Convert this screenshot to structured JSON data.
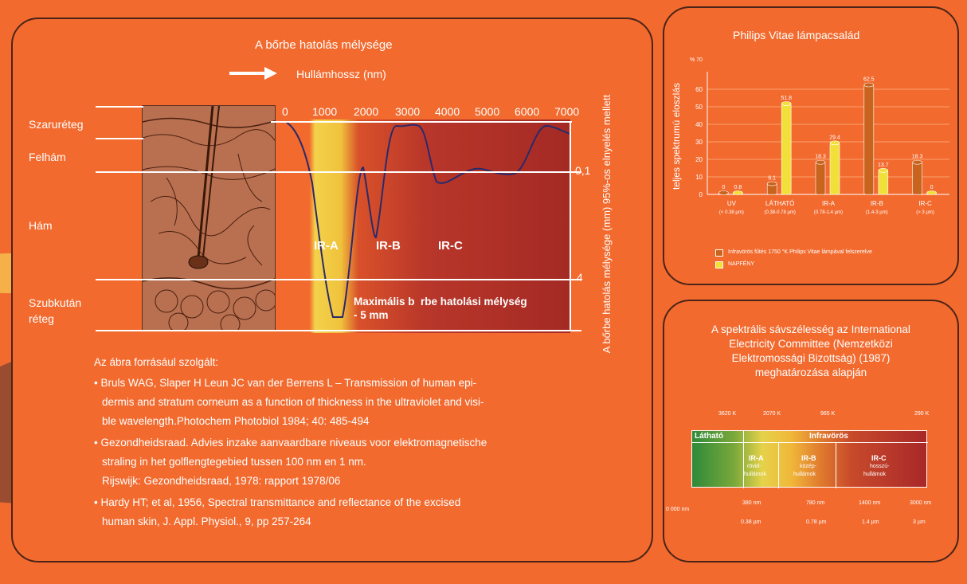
{
  "main_diagram": {
    "title": "A bőrbe hatolás mélysége",
    "wavelength_label": "Hullámhossz (nm)",
    "layers": [
      "Szaruréteg",
      "Felhám",
      "Hám",
      "Szubkután\nréteg"
    ],
    "x_ticks": [
      "0",
      "1000",
      "2000",
      "3000",
      "4000",
      "5000",
      "6000",
      "7000"
    ],
    "right_ticks": [
      "0,1",
      "4"
    ],
    "right_axis_label": "A bőrbe hatolás mélysége (mm) 95%-os elnyelés mellett",
    "band_labels": [
      "IR-A",
      "IR-B",
      "IR-C"
    ],
    "max_depth_line1": "Maximális b  rbe hatolási mélység",
    "max_depth_line2": "- 5 mm"
  },
  "sources": {
    "heading": "Az ábra forrásául szolgált:",
    "items": [
      [
        "• Bruls WAG, Slaper H Leun JC van der Berrens L – Transmission of human epi-",
        "dermis and stratum corneum as a function of thickness in the ultraviolet and visi-",
        "ble wavelength.Photochem Photobiol 1984; 40: 485-494"
      ],
      [
        "• Gezondheidsraad. Advies inzake aanvaardbare niveaus voor elektromagnetische",
        "straling in het golflengtegebied tussen 100 nm en 1 nm.",
        "Rijswijk: Gezondheidsraad, 1978: rapport 1978/06"
      ],
      [
        "• Hardy HT; et al, 1956, Spectral transmittance and reflectance of the excised",
        "human skin, J. Appl. Physiol., 9, pp 257-264"
      ]
    ]
  },
  "chart_data": {
    "type": "bar",
    "title": "Philips Vitae lámpacsalád",
    "ylabel": "teljes spektrumú eloszlás",
    "y_unit_label": "% 70",
    "y_ticks": [
      "60",
      "50",
      "40",
      "30",
      "20",
      "10",
      "0"
    ],
    "ylim": [
      0,
      70
    ],
    "categories": [
      "UV",
      "LÁTHATÓ",
      "IR-A",
      "IR-B",
      "IR-C"
    ],
    "category_sublabels": [
      "(< 0.38 µm)",
      "(0.38-0.78 µm)",
      "(0.78-1.4 µm)",
      "(1.4-3 µm)",
      "(> 3 µm)"
    ],
    "series": [
      {
        "name": "Infravörös fűtés 1750 °K Philips Vitae lámpával felszerelve",
        "values": [
          0,
          6.1,
          18.3,
          62.5,
          18.3
        ],
        "labels": [
          "0",
          "6.1",
          "18.3",
          "62.5",
          "18.3"
        ],
        "color": "#c8641e"
      },
      {
        "name": "NAPFÉNY",
        "values": [
          0.8,
          51.8,
          29.4,
          13.7,
          0
        ],
        "labels": [
          "0.8",
          "51.8",
          "29.4",
          "13.7",
          "0"
        ],
        "color": "#f2e03a"
      }
    ]
  },
  "spectrum": {
    "title_lines": [
      "A spektrális sávszélesség az International",
      "Electricity Committee (Nemzetközi",
      "Elektromossági Bizottság) (1987)",
      "meghatározása alapján"
    ],
    "top_temps": [
      "3620 K",
      "2070 K",
      "965 K",
      "290 K"
    ],
    "visible_label": "Látható",
    "infra_label": "Infravörös",
    "segments": [
      [
        "IR-A",
        "rövid-",
        "hullámok"
      ],
      [
        "IR-B",
        "közép-",
        "hullámok"
      ],
      [
        "IR-C",
        "hosszú-",
        "hullámok"
      ]
    ],
    "nm_ticks": [
      "0 000 nm",
      "380 nm",
      "780 nm",
      "1400 nm",
      "3000 nm"
    ],
    "um_ticks": [
      "0.38 µm",
      "0.78 µm",
      "1.4 µm",
      "3 µm"
    ]
  }
}
